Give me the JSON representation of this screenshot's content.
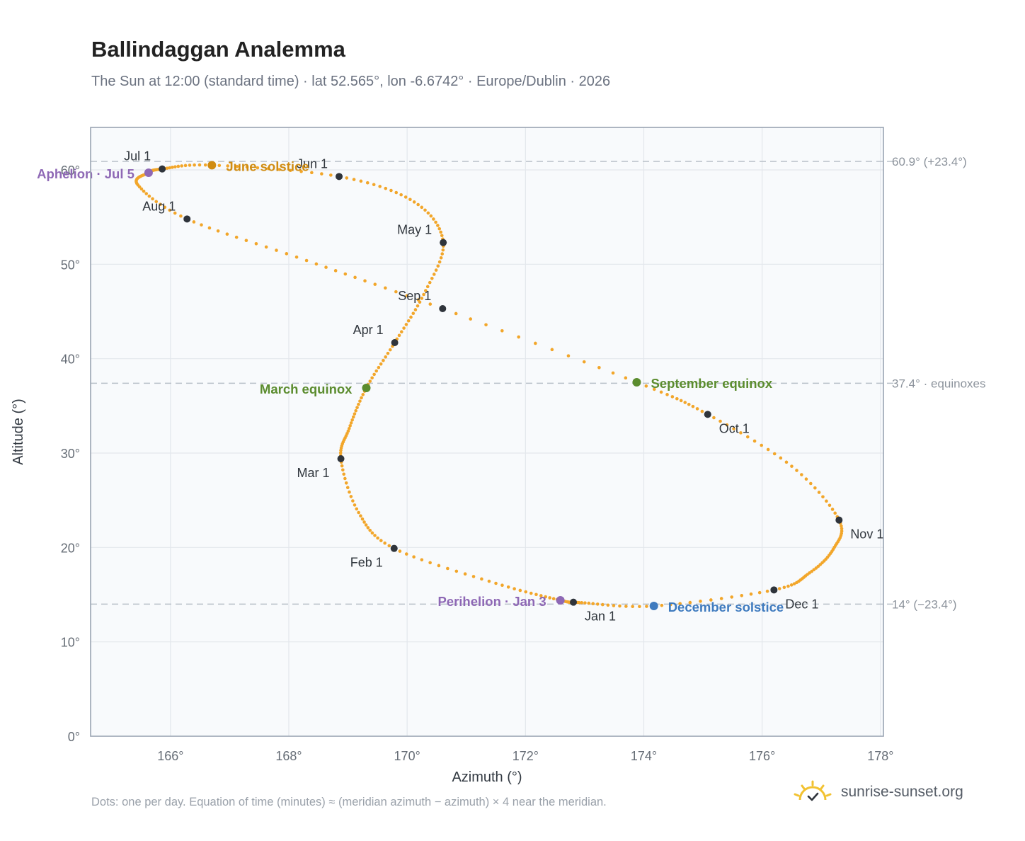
{
  "title": "Ballindaggan Analemma",
  "subtitle": "The Sun at 12:00 (standard time) · lat 52.565°, lon -6.6742° · Europe/Dublin · 2026",
  "footnote": "Dots: one per day. Equation of time (minutes) ≈ (meridian azimuth − azimuth) × 4 near the meridian.",
  "brand": {
    "text": "sunrise-sunset.org",
    "icon": "sun-check-icon"
  },
  "colors": {
    "curve": "#f2a62a",
    "month_dot": "#2f343b",
    "solstice_june": "#d08c12",
    "solstice_december": "#3f7bbf",
    "equinox": "#5b8c2e",
    "apsis": "#8e68b5",
    "grid": "#e3e7ec",
    "plot_bg": "#f8fafc",
    "frame": "#9aa4b2",
    "ref_line": "#b8c0c8"
  },
  "chart_data": {
    "type": "scatter",
    "title": "Ballindaggan Analemma",
    "xlabel": "Azimuth (°)",
    "ylabel": "Altitude (°)",
    "xlim": [
      164.65,
      178.05
    ],
    "ylim": [
      0,
      64.5
    ],
    "x_ticks": [
      166,
      168,
      170,
      172,
      174,
      176,
      178
    ],
    "y_ticks": [
      0,
      10,
      20,
      30,
      40,
      50,
      60
    ],
    "x_tick_labels": [
      "166°",
      "168°",
      "170°",
      "172°",
      "174°",
      "176°",
      "178°"
    ],
    "y_tick_labels": [
      "0°",
      "10°",
      "20°",
      "30°",
      "40°",
      "50°",
      "60°"
    ],
    "grid": true,
    "legend": "none",
    "reference_lines": [
      {
        "y": 60.9,
        "label": "60.9° (+23.4°)"
      },
      {
        "y": 37.4,
        "label": "37.4° · equinoxes"
      },
      {
        "y": 14.0,
        "label": "14° (−23.4°)"
      }
    ],
    "daily_series": {
      "note_points_per_day": 1,
      "anchors": [
        {
          "date": "Jan 1",
          "x": 172.81,
          "y": 14.2
        },
        {
          "date": "Jan 3",
          "x": 172.59,
          "y": 14.4
        },
        {
          "date": "Jan 15",
          "x": 171.5,
          "y": 16.2
        },
        {
          "date": "Feb 1",
          "x": 169.78,
          "y": 19.9
        },
        {
          "date": "Feb 12",
          "x": 169.18,
          "y": 23.7
        },
        {
          "date": "Mar 1",
          "x": 168.88,
          "y": 29.4
        },
        {
          "date": "Mar 10",
          "x": 169.02,
          "y": 32.6
        },
        {
          "date": "Mar 20",
          "x": 169.31,
          "y": 36.9
        },
        {
          "date": "Apr 1",
          "x": 169.79,
          "y": 41.7
        },
        {
          "date": "Apr 15",
          "x": 170.28,
          "y": 46.8
        },
        {
          "date": "May 1",
          "x": 170.61,
          "y": 52.3
        },
        {
          "date": "May 15",
          "x": 170.12,
          "y": 56.6
        },
        {
          "date": "Jun 1",
          "x": 168.85,
          "y": 59.3
        },
        {
          "date": "Jun 21",
          "x": 166.7,
          "y": 60.5
        },
        {
          "date": "Jul 1",
          "x": 165.86,
          "y": 60.1
        },
        {
          "date": "Jul 5",
          "x": 165.63,
          "y": 59.7
        },
        {
          "date": "Jul 14",
          "x": 165.45,
          "y": 58.4
        },
        {
          "date": "Aug 1",
          "x": 166.28,
          "y": 54.8
        },
        {
          "date": "Aug 15",
          "x": 168.3,
          "y": 50.4
        },
        {
          "date": "Sep 1",
          "x": 170.6,
          "y": 45.3
        },
        {
          "date": "Sep 22",
          "x": 173.88,
          "y": 37.5
        },
        {
          "date": "Oct 1",
          "x": 175.08,
          "y": 34.1
        },
        {
          "date": "Oct 15",
          "x": 176.5,
          "y": 28.6
        },
        {
          "date": "Nov 1",
          "x": 177.3,
          "y": 22.9
        },
        {
          "date": "Nov 10",
          "x": 177.2,
          "y": 19.8
        },
        {
          "date": "Nov 20",
          "x": 176.8,
          "y": 17.3
        },
        {
          "date": "Dec 1",
          "x": 176.2,
          "y": 15.5
        },
        {
          "date": "Dec 21",
          "x": 174.17,
          "y": 13.8
        },
        {
          "date": "Dec 31",
          "x": 172.95,
          "y": 14.15
        }
      ]
    },
    "month_markers": [
      {
        "label": "Jan 1",
        "x": 172.81,
        "y": 14.2,
        "anchor": "below-right"
      },
      {
        "label": "Feb 1",
        "x": 169.78,
        "y": 19.9,
        "anchor": "below-left"
      },
      {
        "label": "Mar 1",
        "x": 168.88,
        "y": 29.4,
        "anchor": "below-left"
      },
      {
        "label": "Apr 1",
        "x": 169.79,
        "y": 41.7,
        "anchor": "above-left"
      },
      {
        "label": "May 1",
        "x": 170.61,
        "y": 52.3,
        "anchor": "above-left"
      },
      {
        "label": "Jun 1",
        "x": 168.85,
        "y": 59.3,
        "anchor": "above-left"
      },
      {
        "label": "Jul 1",
        "x": 165.86,
        "y": 60.1,
        "anchor": "above-left"
      },
      {
        "label": "Aug 1",
        "x": 166.28,
        "y": 54.8,
        "anchor": "above-left"
      },
      {
        "label": "Sep 1",
        "x": 170.6,
        "y": 45.3,
        "anchor": "above-left"
      },
      {
        "label": "Oct 1",
        "x": 175.08,
        "y": 34.1,
        "anchor": "below-right"
      },
      {
        "label": "Nov 1",
        "x": 177.3,
        "y": 22.9,
        "anchor": "below-right"
      },
      {
        "label": "Dec 1",
        "x": 176.2,
        "y": 15.5,
        "anchor": "below-right"
      }
    ],
    "events": [
      {
        "label": "June solstice",
        "x": 166.7,
        "y": 60.5,
        "color_key": "solstice_june",
        "anchor": "right"
      },
      {
        "label": "December solstice",
        "x": 174.17,
        "y": 13.8,
        "color_key": "solstice_december",
        "anchor": "right"
      },
      {
        "label": "March equinox",
        "x": 169.31,
        "y": 36.9,
        "color_key": "equinox",
        "anchor": "left"
      },
      {
        "label": "September equinox",
        "x": 173.88,
        "y": 37.5,
        "color_key": "equinox",
        "anchor": "right"
      },
      {
        "label": "Perihelion · Jan 3",
        "x": 172.59,
        "y": 14.4,
        "color_key": "apsis",
        "anchor": "left"
      },
      {
        "label": "Aphelion · Jul 5",
        "x": 165.63,
        "y": 59.7,
        "color_key": "apsis",
        "anchor": "left"
      }
    ]
  }
}
